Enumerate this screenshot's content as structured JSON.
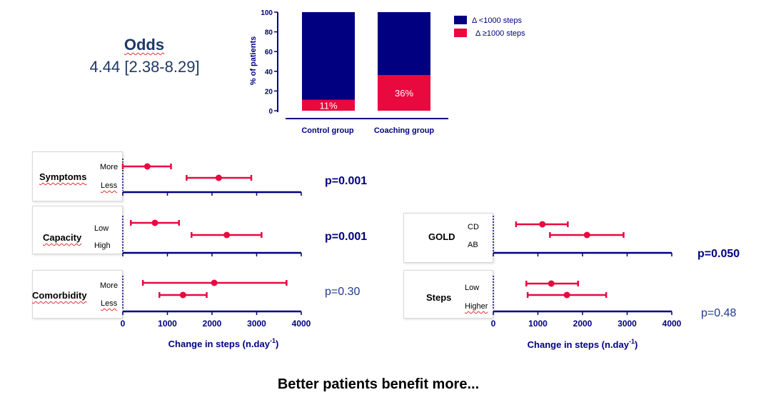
{
  "odds": {
    "title": "Odds",
    "value": "4.44 [2.38-8.29]"
  },
  "colors": {
    "navy": "#000080",
    "red": "#e8093f"
  },
  "chart_data": [
    {
      "type": "bar",
      "stacked": true,
      "ylabel": "% of patients",
      "ylim": [
        0,
        100
      ],
      "yticks": [
        "0",
        "20",
        "40",
        "60",
        "80",
        "100"
      ],
      "categories": [
        "Control group",
        "Coaching group"
      ],
      "series": [
        {
          "name": "Δ <1000 steps",
          "values": [
            89,
            64
          ],
          "color": "#000080"
        },
        {
          "name": "Δ ≥1000 steps",
          "values": [
            11,
            36
          ],
          "color": "#e8093f"
        }
      ],
      "data_labels": [
        "11%",
        "36%"
      ],
      "legend_position": "right"
    },
    {
      "type": "scatter",
      "variant": "forest",
      "title": "Symptoms",
      "xlim": [
        0,
        4000
      ],
      "categories": [
        "More",
        "Less"
      ],
      "points": [
        {
          "label": "More",
          "value": 550,
          "ci": [
            0,
            1080
          ]
        },
        {
          "label": "Less",
          "value": 2150,
          "ci": [
            1430,
            2880
          ]
        }
      ],
      "pvalue": "p=0.001"
    },
    {
      "type": "scatter",
      "variant": "forest",
      "title": "Capacity",
      "xlim": [
        0,
        4000
      ],
      "categories": [
        "Low",
        "High"
      ],
      "points": [
        {
          "label": "Low",
          "value": 720,
          "ci": [
            180,
            1260
          ]
        },
        {
          "label": "High",
          "value": 2330,
          "ci": [
            1540,
            3110
          ]
        }
      ],
      "pvalue": "p=0.001"
    },
    {
      "type": "scatter",
      "variant": "forest",
      "title": "Comorbidity",
      "xlim": [
        0,
        4000
      ],
      "xticks": [
        "0",
        "1000",
        "2000",
        "3000",
        "4000"
      ],
      "xlabel": "Change in steps (n.day",
      "xlabel_sup": "-1",
      "xlabel_end": ")",
      "categories": [
        "More",
        "Less"
      ],
      "points": [
        {
          "label": "More",
          "value": 2050,
          "ci": [
            450,
            3670
          ]
        },
        {
          "label": "Less",
          "value": 1350,
          "ci": [
            820,
            1880
          ]
        }
      ],
      "pvalue": "p=0.30"
    },
    {
      "type": "scatter",
      "variant": "forest",
      "title": "GOLD",
      "xlim": [
        0,
        4000
      ],
      "categories": [
        "CD",
        "AB"
      ],
      "points": [
        {
          "label": "CD",
          "value": 1100,
          "ci": [
            510,
            1670
          ]
        },
        {
          "label": "AB",
          "value": 2100,
          "ci": [
            1270,
            2920
          ]
        }
      ],
      "pvalue": "p=0.050"
    },
    {
      "type": "scatter",
      "variant": "forest",
      "title": "Steps",
      "xlim": [
        0,
        4000
      ],
      "xticks": [
        "0",
        "1000",
        "2000",
        "3000",
        "4000"
      ],
      "xlabel": "Change in steps (n.day",
      "xlabel_sup": "-1",
      "xlabel_end": ")",
      "categories": [
        "Low",
        "Higher"
      ],
      "points": [
        {
          "label": "Low",
          "value": 1300,
          "ci": [
            740,
            1900
          ]
        },
        {
          "label": "Higher",
          "value": 1650,
          "ci": [
            770,
            2530
          ]
        }
      ],
      "pvalue": "p=0.48"
    }
  ],
  "footer": "Better patients benefit more..."
}
